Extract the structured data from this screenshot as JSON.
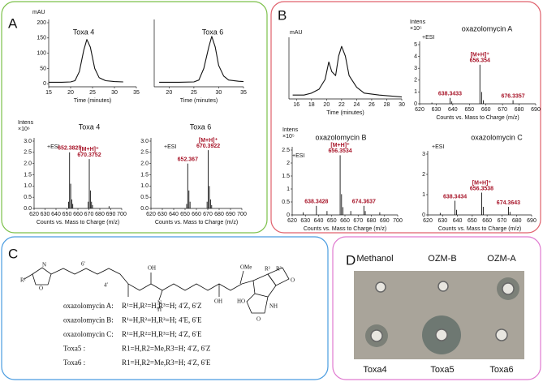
{
  "panel_labels": [
    "A",
    "B",
    "C",
    "D"
  ],
  "chart_data": [
    {
      "type": "line",
      "title": "Toxa 4",
      "y_label": "mAU",
      "xlabel": "Time (minutes)",
      "color": "#111111",
      "x": [
        15,
        18,
        20,
        21,
        22,
        23,
        23.7,
        24.5,
        25.5,
        26.5,
        28,
        30,
        32
      ],
      "values": [
        5,
        5,
        6,
        10,
        40,
        110,
        145,
        120,
        50,
        20,
        10,
        7,
        6
      ],
      "xlim": [
        15,
        35
      ],
      "xticks": [
        15,
        20,
        25,
        30,
        35
      ],
      "ylim": [
        -10,
        200
      ],
      "yticks": [
        0,
        50,
        100,
        150,
        200
      ]
    },
    {
      "type": "line",
      "title": "Toxa 6",
      "xlabel": "Time (minutes)",
      "color": "#111111",
      "x": [
        18,
        22,
        25,
        26,
        27,
        28,
        28.6,
        29.3,
        30,
        31,
        32,
        34,
        35
      ],
      "values": [
        5,
        5,
        6,
        12,
        50,
        120,
        155,
        120,
        60,
        25,
        12,
        8,
        7
      ],
      "xlim": [
        17,
        35
      ],
      "xticks": [
        20,
        25,
        30,
        35
      ],
      "ylim": [
        -10,
        200
      ]
    },
    {
      "type": "spectrum",
      "title": "Toxa 4",
      "y_label": "Intens",
      "y_unit": "×10⁶",
      "ion_mode": "+ESI",
      "xlabel": "Counts vs. Mass to Charge (m/z)",
      "color": "#111111",
      "x": [
        651.5,
        652.3825,
        653.4,
        654.4,
        655.3,
        669.4,
        670.3752,
        671.4,
        672.4,
        673.3,
        688.4
      ],
      "values": [
        0.3,
        2.5,
        1.1,
        0.4,
        0.2,
        0.3,
        2.2,
        0.8,
        0.3,
        0.15,
        0.1
      ],
      "annotations": [
        {
          "x": 652.3825
        },
        {
          "ion": "[M+H]⁺",
          "x": 670.3752
        }
      ],
      "xlim": [
        620,
        700
      ],
      "xticks": [
        620,
        630,
        640,
        650,
        660,
        670,
        680,
        690,
        700
      ],
      "ylim": [
        0,
        3.0
      ],
      "yticks": [
        {
          "value": 0,
          "label": "0.0"
        },
        0.5,
        {
          "value": 1,
          "label": "1.0"
        },
        1.5,
        {
          "value": 2,
          "label": "2.0"
        },
        2.5,
        {
          "value": 3,
          "label": "3.0"
        }
      ]
    },
    {
      "type": "spectrum",
      "title": "Toxa 6",
      "ion_mode": "+ESI",
      "xlabel": "Counts vs. Mass to Charge (m/z)",
      "color": "#111111",
      "x": [
        651.4,
        652.367,
        653.4,
        654.4,
        669.4,
        670.3922,
        671.4,
        672.4,
        673.4
      ],
      "values": [
        0.2,
        2.0,
        0.8,
        0.3,
        0.3,
        2.6,
        1.0,
        0.4,
        0.15
      ],
      "annotations": [
        {
          "x": 652.367
        },
        {
          "ion": "[M+H]⁺",
          "x": 670.3922
        }
      ],
      "xlim": [
        620,
        700
      ],
      "xticks": [
        620,
        630,
        640,
        650,
        660,
        670,
        680,
        690,
        700
      ],
      "ylim": [
        0,
        3.0
      ],
      "yticks": [
        {
          "value": 0,
          "label": "0.0"
        },
        0.5,
        {
          "value": 1,
          "label": "1.0"
        },
        1.5,
        {
          "value": 2,
          "label": "2.0"
        },
        2.5,
        {
          "value": 3,
          "label": "3.0"
        }
      ]
    },
    {
      "type": "line",
      "y_label": "mAU",
      "xlabel": "Time (minutes)",
      "color": "#111111",
      "x": [
        15.5,
        17,
        18,
        19,
        19.8,
        20.3,
        20.7,
        21.2,
        21.6,
        22,
        22.5,
        23,
        24,
        25,
        27,
        30
      ],
      "values": [
        2,
        2,
        3,
        5,
        10,
        19,
        14,
        12,
        22,
        27,
        22,
        12,
        6,
        3,
        2,
        1
      ],
      "xlim": [
        15,
        30
      ],
      "xticks": [
        16,
        18,
        20,
        22,
        24,
        26,
        28,
        30
      ],
      "ylim": [
        0,
        30
      ]
    },
    {
      "type": "spectrum",
      "title": "oxazolomycin A",
      "y_label": "Intens",
      "y_unit": "×10⁵",
      "ion_mode": "+ESI",
      "xlabel": "Counts vs. Mass to Charge (m/z)",
      "color": "#111111",
      "x": [
        627.4,
        638.3433,
        639.4,
        656.354,
        657.4,
        658.4,
        676.3357
      ],
      "values": [
        0.1,
        0.5,
        0.2,
        3.3,
        1.0,
        0.3,
        0.3
      ],
      "annotations": [
        {
          "x": 638.3433
        },
        {
          "ion": "[M+H]⁺",
          "x": 656.354
        },
        {
          "x": 676.3357
        }
      ],
      "xlim": [
        620,
        690
      ],
      "xticks": [
        620,
        630,
        640,
        650,
        660,
        670,
        680,
        690
      ],
      "ylim": [
        0,
        5
      ],
      "yticks": [
        0,
        1,
        2,
        3,
        4,
        5
      ]
    },
    {
      "type": "spectrum",
      "title": "oxazolomycin B",
      "y_label": "Intens",
      "y_unit": "×10⁵",
      "ion_mode": "+ESI",
      "xlabel": "Counts vs. Mass to Charge (m/z)",
      "color": "#111111",
      "x": [
        628.4,
        638.3428,
        646.4,
        656.3534,
        657.4,
        658.4,
        664.4,
        674.3637,
        675.4,
        686.4
      ],
      "values": [
        0.1,
        0.35,
        0.15,
        2.3,
        0.8,
        0.3,
        0.15,
        0.35,
        0.15,
        0.1
      ],
      "annotations": [
        {
          "x": 638.3428
        },
        {
          "ion": "[M+H]⁺",
          "x": 656.3534
        },
        {
          "x": 674.3637
        }
      ],
      "xlim": [
        620,
        700
      ],
      "xticks": [
        620,
        630,
        640,
        650,
        660,
        670,
        680,
        690,
        700
      ],
      "ylim": [
        0,
        2.5
      ],
      "yticks": [
        0,
        0.5,
        1,
        1.5,
        2,
        2.5
      ]
    },
    {
      "type": "spectrum",
      "title": "oxazolomycin C",
      "ion_mode": "+ESI",
      "xlabel": "Counts vs. Mass to Charge (m/z)",
      "color": "#111111",
      "x": [
        628.4,
        638.3434,
        639.4,
        656.3538,
        657.4,
        674.3643,
        675.4
      ],
      "values": [
        0.1,
        0.7,
        0.25,
        1.1,
        0.4,
        0.4,
        0.15
      ],
      "annotations": [
        {
          "x": 638.3434
        },
        {
          "ion": "[M+H]⁺",
          "x": 656.3538
        },
        {
          "x": 674.3643
        }
      ],
      "xlim": [
        620,
        690
      ],
      "xticks": [
        620,
        630,
        640,
        650,
        660,
        670,
        680,
        690
      ],
      "ylim": [
        0,
        3
      ],
      "yticks": [
        0,
        1,
        2,
        3
      ]
    }
  ],
  "structure": {
    "atoms": [
      "R¹",
      "N",
      "O",
      "4′",
      "6′",
      "OH",
      "N",
      "H",
      "OH",
      "HO",
      "OMe",
      "R²",
      "R³",
      "O",
      "NH",
      "O"
    ],
    "compounds": [
      {
        "name": "oxazolomycin A:",
        "desc": "R¹=H,R²=H,R³=H; 4′Z, 6′Z"
      },
      {
        "name": "oxazolomycin B:",
        "desc": "R¹=H,R²=H,R³=H; 4′E, 6′E"
      },
      {
        "name": "oxazolomycin C:",
        "desc": "R¹=H,R²=H,R³=H; 4′Z, 6′E"
      },
      {
        "name": "Toxa5 :",
        "desc": "R1=H,R2=Me,R3=H; 4′Z, 6′Z"
      },
      {
        "name": "Toxa6 :",
        "desc": "R1=H,R2=Me,R3=H; 4′Z, 6′E"
      }
    ]
  },
  "photo": {
    "top_labels": [
      "Methanol",
      "OZM-B",
      "OZM-A"
    ],
    "bottom_labels": [
      "Toxa4",
      "Toxa5",
      "Toxa6"
    ]
  }
}
